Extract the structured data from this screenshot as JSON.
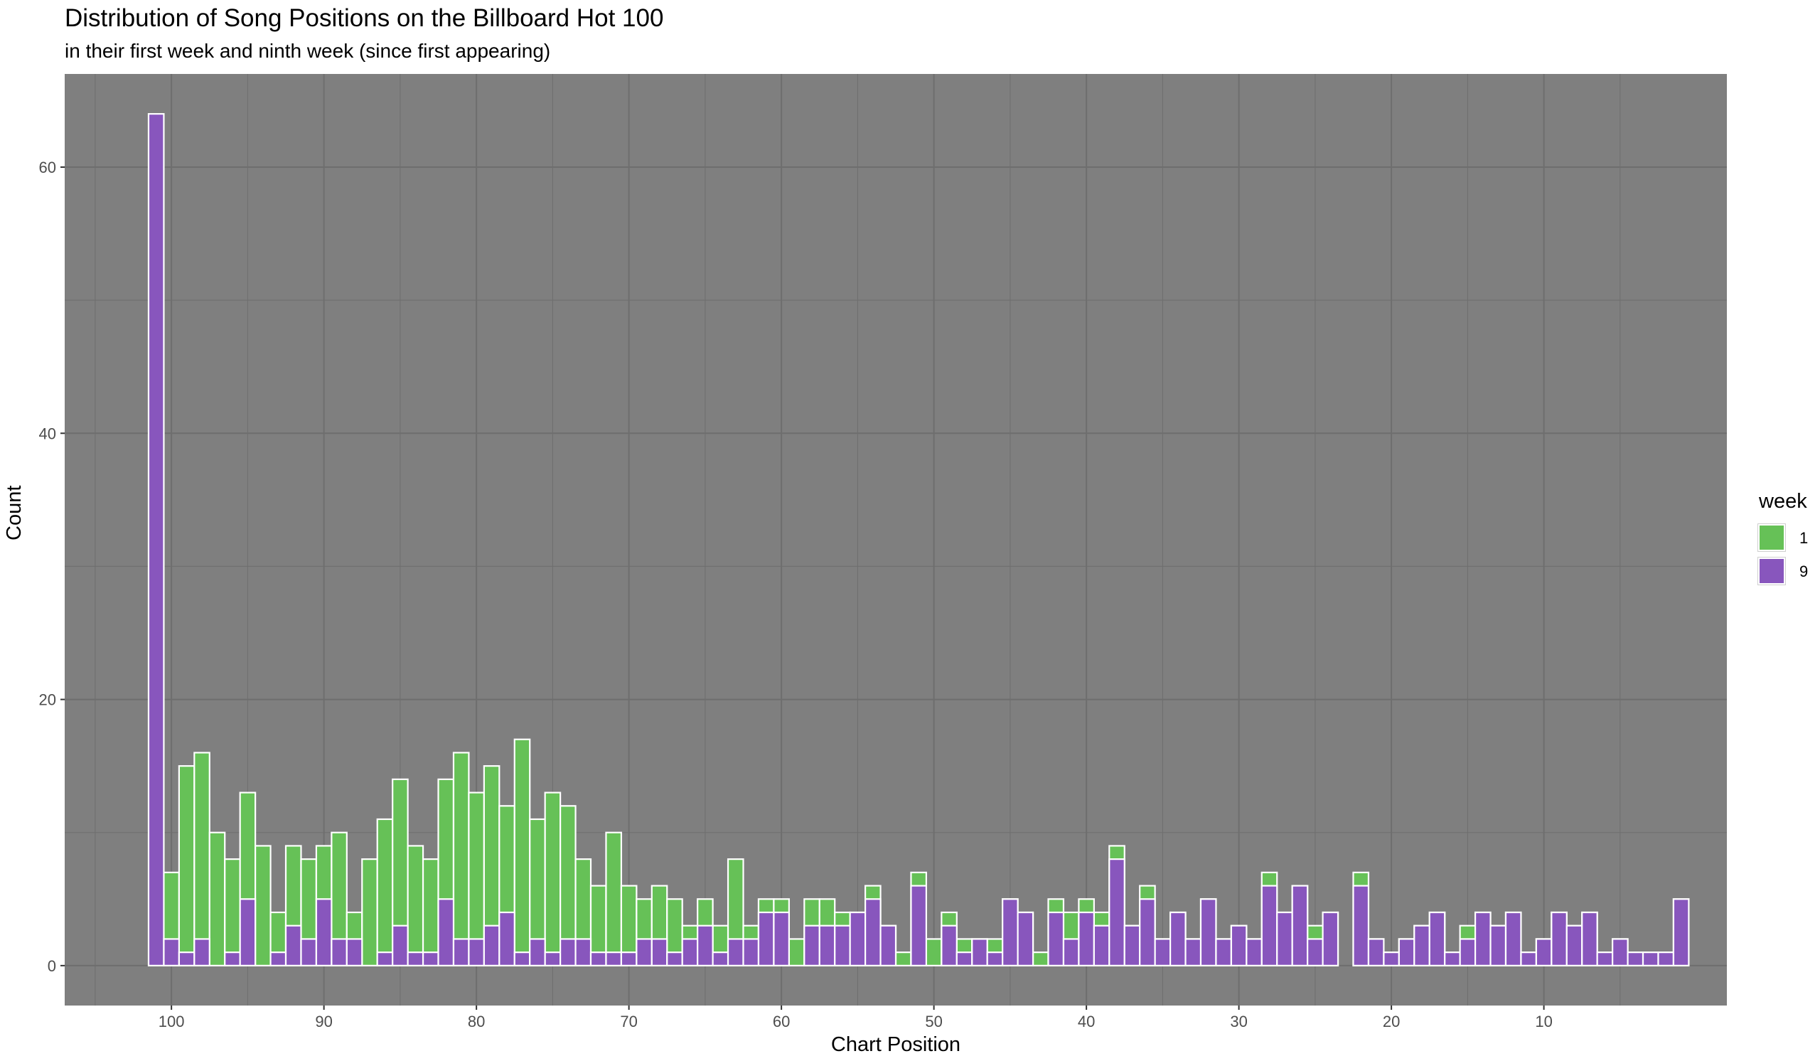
{
  "chart_data": {
    "type": "bar",
    "title": "Distribution of Song Positions on the Billboard Hot 100",
    "subtitle": "in their first week and ninth week (since first appearing)",
    "xlabel": "Chart Position",
    "ylabel": "Count",
    "x_reversed": true,
    "xlim": [
      107,
      -2
    ],
    "ylim": [
      -3,
      67
    ],
    "x_ticks": [
      100,
      90,
      80,
      70,
      60,
      50,
      40,
      30,
      20,
      10
    ],
    "y_ticks": [
      0,
      20,
      40,
      60
    ],
    "grid": true,
    "stacked": false,
    "legend": {
      "title": "week",
      "position": "right"
    },
    "colors": {
      "week1": "#66c157",
      "week9": "#8856bd",
      "border": "#ffffff",
      "panel": "#7f7f7f",
      "grid": "#6e6e6e"
    },
    "positions": [
      101,
      100,
      99,
      98,
      97,
      96,
      95,
      94,
      93,
      92,
      91,
      90,
      89,
      88,
      87,
      86,
      85,
      84,
      83,
      82,
      81,
      80,
      79,
      78,
      77,
      76,
      75,
      74,
      73,
      72,
      71,
      70,
      69,
      68,
      67,
      66,
      65,
      64,
      63,
      62,
      61,
      60,
      59,
      58,
      57,
      56,
      55,
      54,
      53,
      52,
      51,
      50,
      49,
      48,
      47,
      46,
      45,
      44,
      43,
      42,
      41,
      40,
      39,
      38,
      37,
      36,
      35,
      34,
      33,
      32,
      31,
      30,
      29,
      28,
      27,
      26,
      25,
      24,
      23,
      22,
      21,
      20,
      19,
      18,
      17,
      16,
      15,
      14,
      13,
      12,
      11,
      10,
      9,
      8,
      7,
      6,
      5,
      4,
      3,
      2,
      1
    ],
    "series": [
      {
        "name": "1",
        "values": [
          0,
          7,
          15,
          16,
          10,
          8,
          13,
          9,
          4,
          9,
          8,
          9,
          10,
          4,
          8,
          11,
          14,
          9,
          8,
          14,
          16,
          13,
          15,
          12,
          17,
          11,
          13,
          12,
          8,
          6,
          10,
          6,
          5,
          6,
          5,
          3,
          5,
          3,
          8,
          3,
          5,
          5,
          2,
          5,
          5,
          4,
          4,
          6,
          3,
          1,
          7,
          2,
          4,
          2,
          2,
          2,
          5,
          4,
          1,
          5,
          4,
          5,
          4,
          9,
          3,
          6,
          2,
          4,
          2,
          5,
          2,
          3,
          2,
          7,
          4,
          6,
          3,
          4,
          0,
          7,
          2,
          1,
          2,
          3,
          4,
          1,
          3,
          4,
          3,
          4,
          1,
          2,
          4,
          3,
          4,
          1,
          2,
          1,
          1,
          1,
          5
        ]
      },
      {
        "name": "9",
        "values": [
          64,
          2,
          1,
          2,
          0,
          1,
          5,
          0,
          1,
          3,
          2,
          5,
          2,
          2,
          0,
          1,
          3,
          1,
          1,
          5,
          2,
          2,
          3,
          4,
          1,
          2,
          1,
          2,
          2,
          1,
          1,
          1,
          2,
          2,
          1,
          2,
          3,
          1,
          2,
          2,
          4,
          4,
          0,
          3,
          3,
          3,
          4,
          5,
          3,
          0,
          6,
          0,
          3,
          1,
          2,
          1,
          5,
          4,
          0,
          4,
          2,
          4,
          3,
          8,
          3,
          5,
          2,
          4,
          2,
          5,
          2,
          3,
          2,
          6,
          4,
          6,
          2,
          4,
          0,
          6,
          2,
          1,
          2,
          3,
          4,
          1,
          2,
          4,
          3,
          4,
          1,
          2,
          4,
          3,
          4,
          1,
          2,
          1,
          1,
          1,
          5
        ]
      }
    ]
  }
}
